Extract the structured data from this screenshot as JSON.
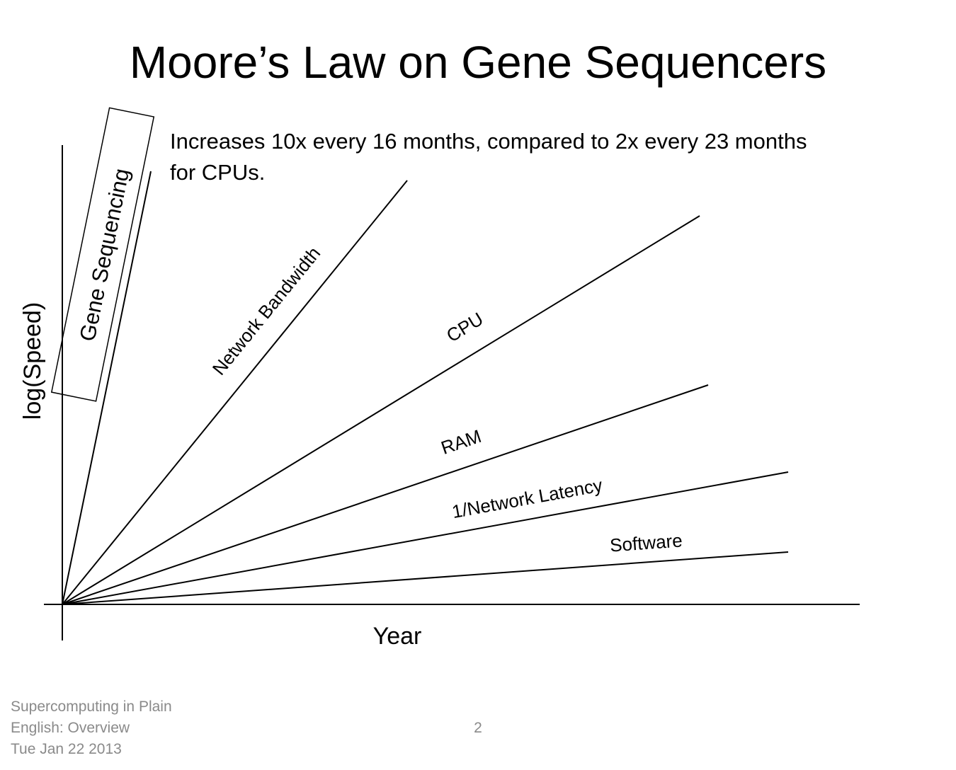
{
  "slide": {
    "title": "Moore’s Law on Gene Sequencers",
    "subtitle_line1": "Increases 10x every 16 months, compared to 2x every 23 months",
    "subtitle_line2": "for CPUs."
  },
  "diagram": {
    "y_axis_label": "log(Speed)",
    "x_axis_label": "Year",
    "trend_lines": [
      {
        "name": "gene-sequencing",
        "label": "Gene Sequencing",
        "boxed": true
      },
      {
        "name": "network-bandwidth",
        "label": "Network Bandwidth"
      },
      {
        "name": "cpu",
        "label": "CPU"
      },
      {
        "name": "ram",
        "label": "RAM"
      },
      {
        "name": "network-latency",
        "label": "1/Network Latency"
      },
      {
        "name": "software",
        "label": "Software"
      }
    ]
  },
  "footer": {
    "line1": "Supercomputing in Plain",
    "line2": "English: Overview",
    "line3": "Tue Jan 22 2013",
    "page_number": "2"
  }
}
